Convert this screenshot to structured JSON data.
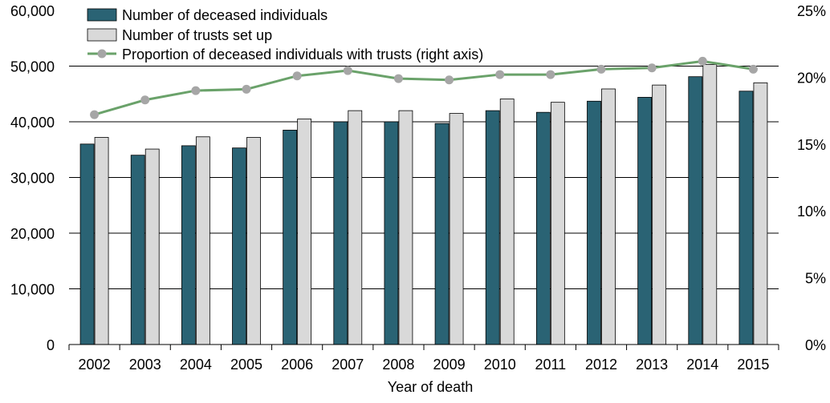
{
  "chart_data": {
    "type": "bar",
    "title": "",
    "xlabel": "Year of death",
    "ylabel": "",
    "y2label": "",
    "categories": [
      "2002",
      "2003",
      "2004",
      "2005",
      "2006",
      "2007",
      "2008",
      "2009",
      "2010",
      "2011",
      "2012",
      "2013",
      "2014",
      "2015"
    ],
    "ylim": [
      0,
      60000
    ],
    "y2lim": [
      0,
      25
    ],
    "y_ticks": [
      {
        "value": 0,
        "label": "0"
      },
      {
        "value": 10000,
        "label": "10,000"
      },
      {
        "value": 20000,
        "label": "20,000"
      },
      {
        "value": 30000,
        "label": "30,000"
      },
      {
        "value": 40000,
        "label": "40,000"
      },
      {
        "value": 50000,
        "label": "50,000"
      },
      {
        "value": 60000,
        "label": "60,000"
      }
    ],
    "y2_ticks": [
      {
        "value": 0,
        "label": "0%"
      },
      {
        "value": 5,
        "label": "5%"
      },
      {
        "value": 10,
        "label": "10%"
      },
      {
        "value": 15,
        "label": "15%"
      },
      {
        "value": 20,
        "label": "20%"
      },
      {
        "value": 25,
        "label": "25%"
      }
    ],
    "gridlines": [
      10000,
      20000,
      30000,
      40000,
      50000
    ],
    "series": [
      {
        "name": "Number of deceased individuals",
        "kind": "bar",
        "axis": "left",
        "color": "#2a6374",
        "values": [
          36000,
          34000,
          35700,
          35300,
          38500,
          40000,
          40000,
          39700,
          42000,
          41700,
          43700,
          44400,
          48100,
          45500
        ]
      },
      {
        "name": "Number of trusts set up",
        "kind": "bar",
        "axis": "left",
        "color": "#d9d9d9",
        "values": [
          37200,
          35100,
          37300,
          37200,
          40500,
          42000,
          42000,
          41500,
          44100,
          43500,
          45900,
          46600,
          50300,
          47000
        ]
      },
      {
        "name": "Proportion of deceased individuals with trusts (right axis)",
        "kind": "line",
        "axis": "right",
        "color": "#6aa26a",
        "marker_color": "#a6a6a6",
        "values": [
          17.2,
          18.3,
          19.0,
          19.1,
          20.1,
          20.5,
          19.9,
          19.8,
          20.2,
          20.2,
          20.6,
          20.7,
          21.2,
          20.6
        ]
      }
    ]
  }
}
